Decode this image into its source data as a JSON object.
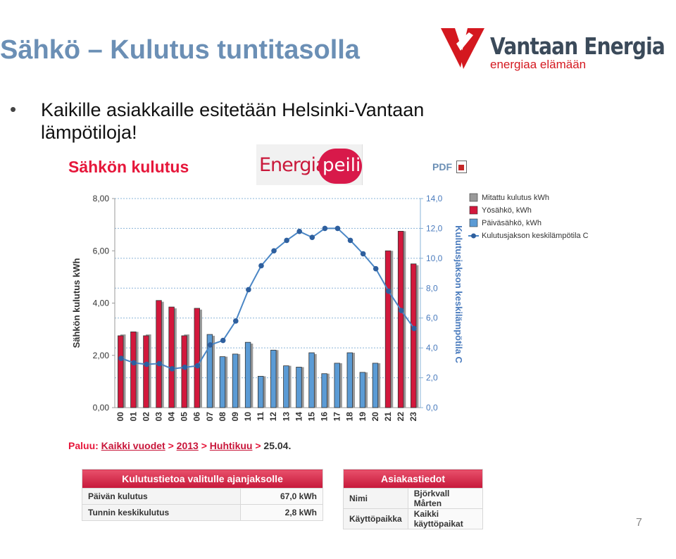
{
  "slide": {
    "title": "Sähkö – Kulutus tuntitasolla",
    "bullet": "Kaikille asiakkaille esitetään Helsinki-Vantaan lämpötiloja!",
    "page_number": "7"
  },
  "logo": {
    "name": "Vantaan Energia",
    "tagline": "energiaa elämään",
    "color": "#d4181f"
  },
  "report": {
    "title": "Sähkön kulutus",
    "brand_logo_text": "Energia",
    "brand_logo_circle": "peili",
    "pdf_label": "PDF",
    "breadcrumb": {
      "prefix": "Paluu:",
      "link1": "Kaikki vuodet",
      "link2": "2013",
      "link3": "Huhtikuu",
      "sep": ">",
      "current": "25.04."
    }
  },
  "chart_data": {
    "type": "bar",
    "categories": [
      "00",
      "01",
      "02",
      "03",
      "04",
      "05",
      "06",
      "07",
      "08",
      "09",
      "10",
      "11",
      "12",
      "13",
      "14",
      "15",
      "16",
      "17",
      "18",
      "19",
      "20",
      "21",
      "22",
      "23"
    ],
    "ylabel": "Sähkön kulutus kWh",
    "y2label": "Kulutusjakson keskilämpötila C",
    "ylim": [
      0,
      8
    ],
    "y2lim": [
      0,
      14
    ],
    "yticks": [
      "0,00",
      "2,00",
      "4,00",
      "6,00",
      "8,00"
    ],
    "y2ticks": [
      "0,0",
      "2,0",
      "4,0",
      "6,0",
      "8,0",
      "10,0",
      "12,0",
      "14,0"
    ],
    "legend_position": "right",
    "series": [
      {
        "name": "Mitattu kulutus kWh",
        "color": "#9a9a9a",
        "values": [
          2.8,
          2.9,
          2.8,
          4.05,
          3.8,
          2.8,
          3.75,
          2.75,
          1.95,
          2.05,
          2.45,
          1.2,
          2.2,
          1.6,
          1.55,
          2.05,
          1.3,
          1.7,
          2.1,
          1.35,
          1.7,
          6.0,
          6.75,
          5.45
        ]
      },
      {
        "name": "Yösähkö, kWh",
        "color": "#d2183c",
        "values": [
          2.75,
          2.9,
          2.75,
          4.1,
          3.85,
          2.75,
          3.8,
          null,
          null,
          null,
          null,
          null,
          null,
          null,
          null,
          null,
          null,
          null,
          null,
          null,
          null,
          6.0,
          6.75,
          5.5
        ]
      },
      {
        "name": "Päiväsähkö, kWh",
        "color": "#5b9bd5",
        "values": [
          null,
          null,
          null,
          null,
          null,
          null,
          null,
          2.8,
          1.95,
          2.05,
          2.5,
          1.2,
          2.2,
          1.6,
          1.55,
          2.1,
          1.3,
          1.7,
          2.1,
          1.35,
          1.7,
          null,
          null,
          null
        ]
      },
      {
        "name": "Kulutusjakson keskilämpötila C",
        "color": "#2e5f9e",
        "axis": "right",
        "values": [
          3.3,
          3.0,
          2.9,
          2.95,
          2.6,
          2.7,
          2.8,
          4.2,
          4.5,
          5.8,
          7.9,
          9.5,
          10.5,
          11.2,
          11.8,
          11.4,
          12.0,
          12.0,
          11.2,
          10.3,
          9.3,
          7.8,
          6.5,
          5.3
        ]
      }
    ]
  },
  "period_table": {
    "header": "Kulutustietoa valitulle ajanjaksolle",
    "rows": [
      {
        "label": "Päivän kulutus",
        "value": "67,0 kWh"
      },
      {
        "label": "Tunnin keskikulutus",
        "value": "2,8 kWh"
      }
    ]
  },
  "customer_table": {
    "header": "Asiakastiedot",
    "rows": [
      {
        "label": "Nimi",
        "value": "Björkvall Mårten"
      },
      {
        "label": "Käyttöpaikka",
        "value": "Kaikki käyttöpaikat"
      }
    ]
  }
}
